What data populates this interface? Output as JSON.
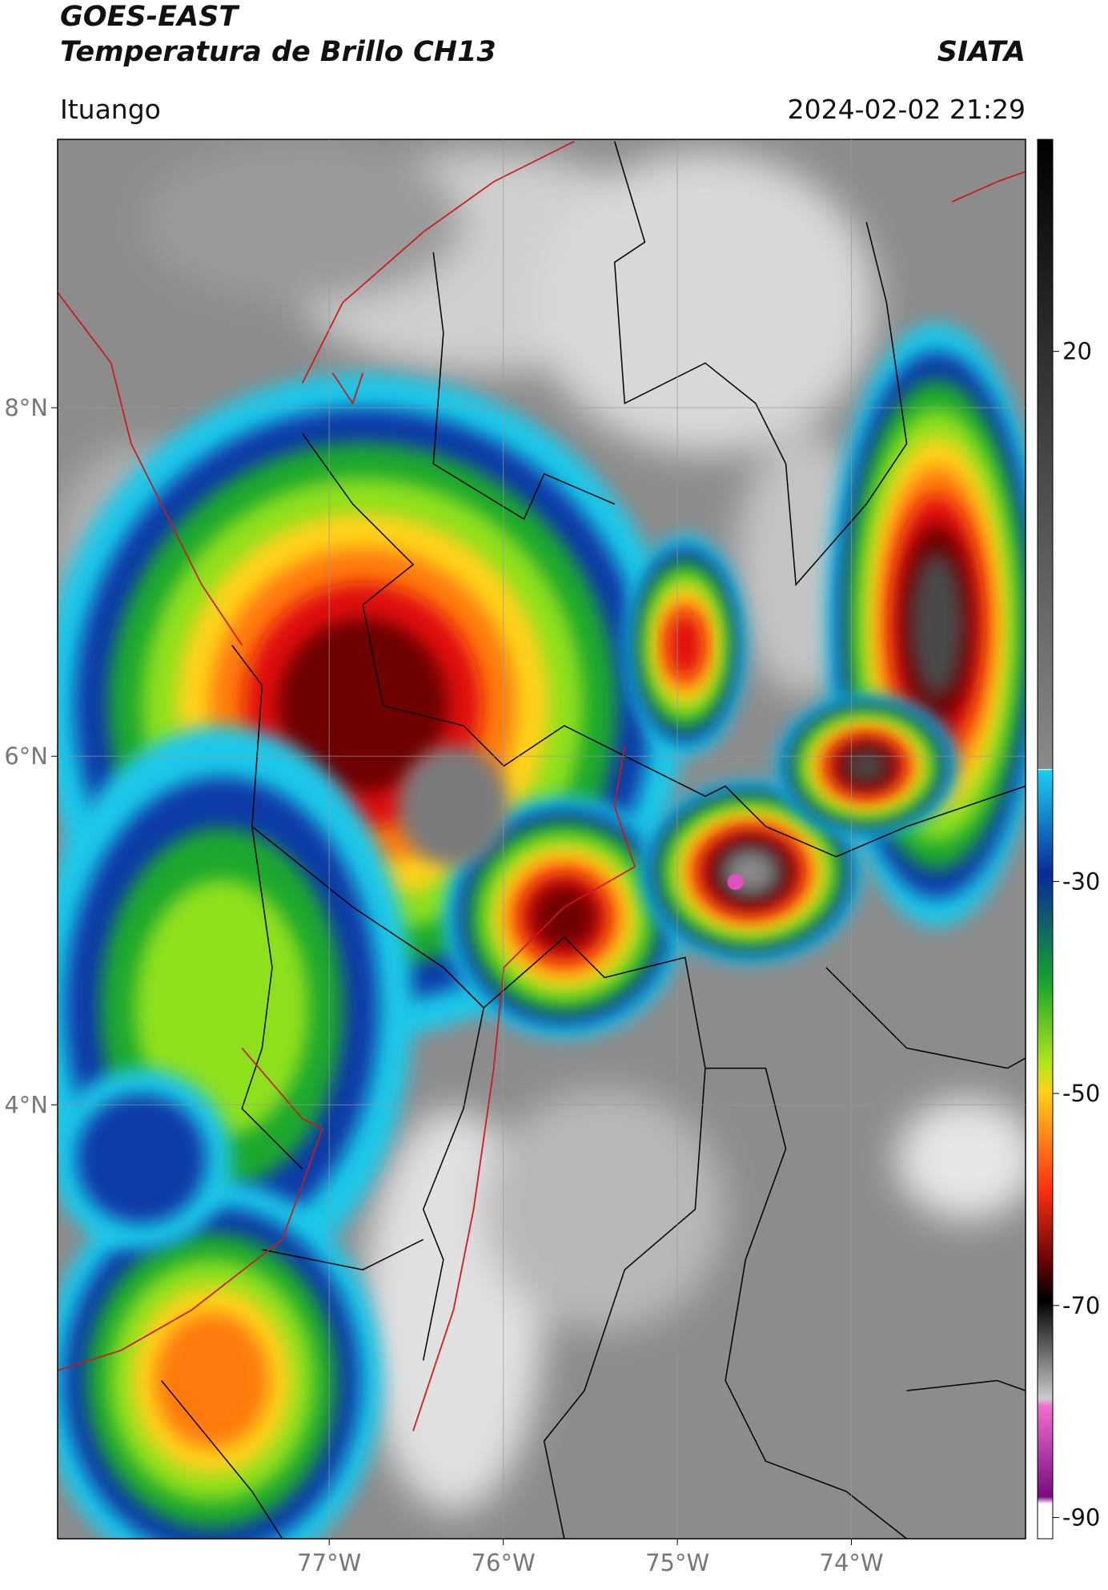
{
  "header": {
    "title_lines": [
      "GOES-EAST",
      "Temperatura de Brillo CH13"
    ],
    "source": "SIATA",
    "location": "Ituango",
    "timestamp": "2024-02-02 21:29"
  },
  "map": {
    "lonlim": [
      -78.56,
      -73.0
    ],
    "latlim": [
      1.51,
      9.54
    ],
    "lonticks": [
      {
        "value": -77,
        "label": "77°W"
      },
      {
        "value": -76,
        "label": "76°W"
      },
      {
        "value": -75,
        "label": "75°W"
      },
      {
        "value": -74,
        "label": "74°W"
      }
    ],
    "latticks": [
      {
        "value": 8,
        "label": "8°N"
      },
      {
        "value": 6,
        "label": "6°N"
      },
      {
        "value": 4,
        "label": "4°N"
      }
    ],
    "grid": true
  },
  "colorbar": {
    "lim": [
      -92,
      40
    ],
    "ticks": [
      20,
      -30,
      -50,
      -70,
      -90
    ]
  }
}
